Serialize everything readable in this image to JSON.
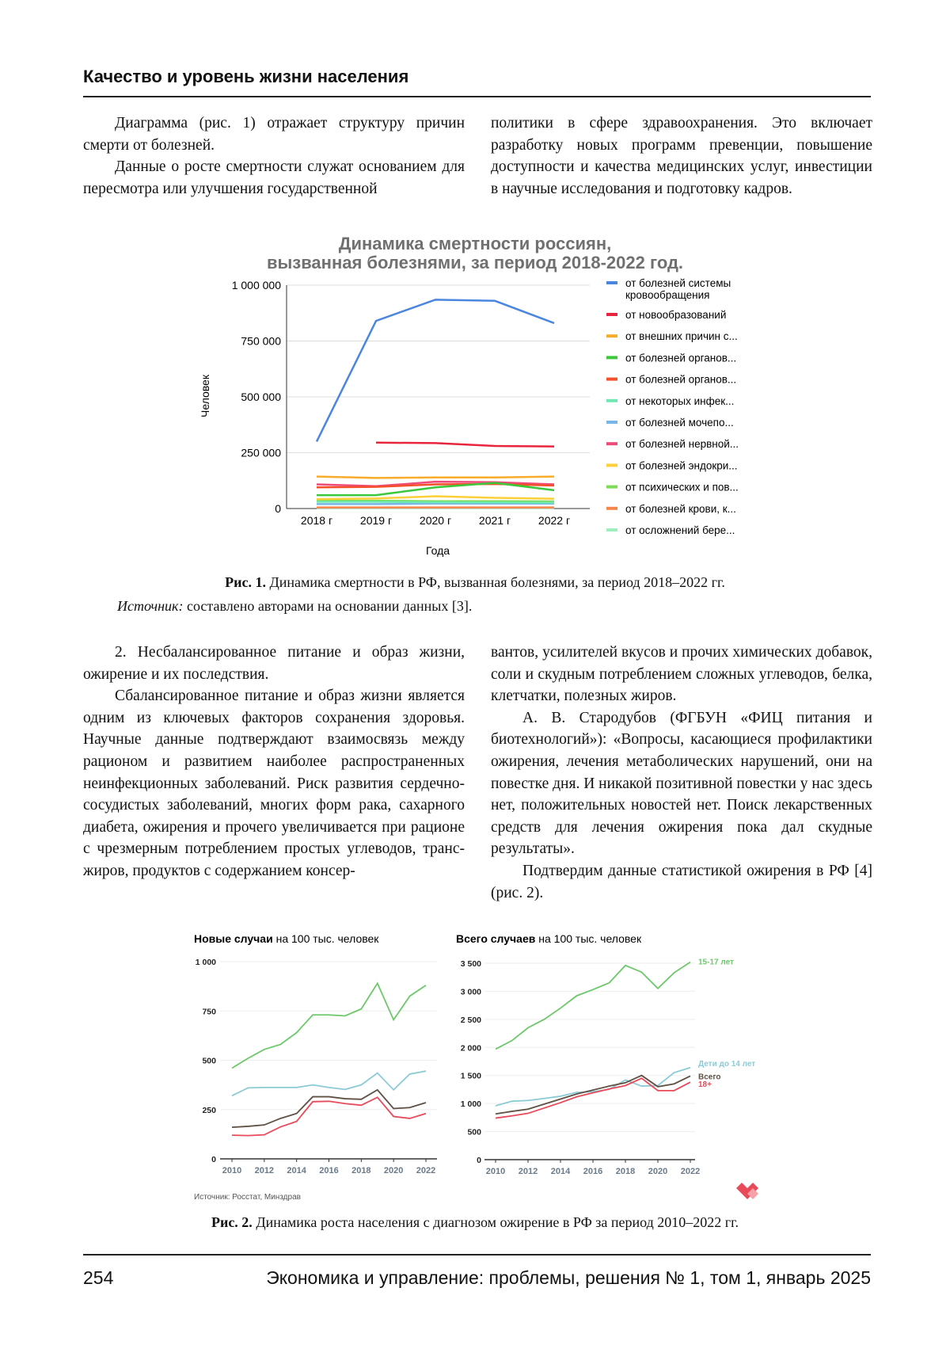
{
  "header": {
    "title": "Качество и уровень жизни населения"
  },
  "top_text": {
    "left": [
      "Диаграмма (рис. 1) отражает структуру причин смерти от болезней.",
      "Данные о росте смертности служат основанием для пересмотра или улучшения государственной"
    ],
    "right": "политики в сфере здравоохранения. Это включает разработку новых программ превенции, повышение доступности и качества медицинских услуг, инвестиции в научные исследования и подготовку кадров."
  },
  "figure1": {
    "caption_label": "Рис. 1.",
    "caption_text": " Динамика смертности в РФ, вызванная болезнями, за период 2018–2022 гг.",
    "source_label": "Источник:",
    "source_text": " составлено авторами на основании данных [3]."
  },
  "middle_text": {
    "left": [
      "2. Несбалансированное питание и образ жизни, ожирение и их последствия.",
      "Сбалансированное питание и образ жизни является одним из ключевых факторов сохранения здоровья. Научные данные подтверждают взаимосвязь между рационом и развитием наиболее распространенных неинфекционных заболеваний. Риск развития сердечно-сосудистых заболеваний, многих форм рака, сахарного диабета, ожирения и прочего увеличивается при рационе с чрезмерным потреблением простых углеводов, транс-жиров, продуктов с содержанием консер-"
    ],
    "right": [
      "вантов, усилителей вкусов и прочих химических добавок, соли и скудным потреблением сложных углеводов, белка, клетчатки, полезных жиров.",
      "А. В. Стародубов (ФГБУН «ФИЦ питания и биотехнологий»): «Вопросы, касающиеся профилактики ожирения, лечения метаболических нарушений, они на повестке дня. И никакой позитивной повестки у нас здесь нет, положительных новостей нет. Поиск лекарственных средств для лечения ожирения пока дал скудные результаты».",
      "Подтвердим данные статистикой ожирения в РФ [4] (рис. 2)."
    ]
  },
  "figure2": {
    "caption_label": "Рис. 2.",
    "caption_text": " Динамика роста населения с диагнозом ожирение в РФ за период 2010–2022 гг.",
    "source": "Источник: Росстат, Минздрав",
    "logo": "heart-logo"
  },
  "footer": {
    "page": "254",
    "journal": "Экономика и управление: проблемы, решения № 1, том 1, январь 2025"
  },
  "chart_data": [
    {
      "type": "line",
      "title": "Динамика смертности россиян, вызванная болезнями, за период 2018-2022 год.",
      "xlabel": "Года",
      "ylabel": "Человек",
      "categories": [
        "2018 г",
        "2019 г",
        "2020 г",
        "2021 г",
        "2022 г"
      ],
      "yticks": [
        0,
        250000,
        500000,
        750000,
        1000000
      ],
      "ytick_labels": [
        "0",
        "250 000",
        "500 000",
        "750 000",
        "1 000 000"
      ],
      "ylim": [
        0,
        1000000
      ],
      "grid": true,
      "legend": "right",
      "series": [
        {
          "name": "от болезней системы кровообращения",
          "color": "#4a86e0",
          "values": [
            300000,
            840000,
            935000,
            930000,
            830000
          ]
        },
        {
          "name": "от новообразований",
          "color": "#e8253d",
          "values": [
            null,
            295000,
            293000,
            280000,
            278000
          ]
        },
        {
          "name": "от внешних причин с...",
          "color": "#f9ac2a",
          "values": [
            143000,
            137000,
            139000,
            139000,
            143000
          ]
        },
        {
          "name": "от болезней органов...",
          "color": "#3cc83c",
          "values": [
            60000,
            60000,
            95000,
            115000,
            82000
          ]
        },
        {
          "name": "от болезней органов...",
          "color": "#f4502a",
          "values": [
            95000,
            97000,
            108000,
            110000,
            103000
          ]
        },
        {
          "name": "от некоторых инфек...",
          "color": "#6ee8b0",
          "values": [
            30000,
            30000,
            28000,
            27000,
            26000
          ]
        },
        {
          "name": "от болезней мочепо...",
          "color": "#7ab5e8",
          "values": [
            20000,
            20000,
            22000,
            22000,
            22000
          ]
        },
        {
          "name": "от болезней нервной...",
          "color": "#ee4a7a",
          "values": [
            108000,
            100000,
            120000,
            118000,
            108000
          ]
        },
        {
          "name": "от болезней эндокри...",
          "color": "#fdd03a",
          "values": [
            42000,
            45000,
            55000,
            48000,
            44000
          ]
        },
        {
          "name": "от психических и пов...",
          "color": "#7ddc55",
          "values": [
            35000,
            35000,
            33000,
            33000,
            32000
          ]
        },
        {
          "name": "от болезней крови, к...",
          "color": "#f7854a",
          "values": [
            5000,
            5000,
            5000,
            5000,
            5000
          ]
        },
        {
          "name": "от осложнений бере...",
          "color": "#a0eec0",
          "values": [
            3000,
            3000,
            3000,
            3000,
            3000
          ]
        }
      ]
    },
    {
      "type": "line",
      "title_bold": "Новые случаи",
      "title_rest": " на 100 тыс. человек",
      "x": [
        2010,
        2011,
        2012,
        2013,
        2014,
        2015,
        2016,
        2017,
        2018,
        2019,
        2020,
        2021,
        2022
      ],
      "xticks": [
        2010,
        2012,
        2014,
        2016,
        2018,
        2020,
        2022
      ],
      "yticks": [
        0,
        250,
        500,
        750,
        1000
      ],
      "ytick_labels": [
        "0",
        "250",
        "500",
        "750",
        "1 000"
      ],
      "ylim": [
        0,
        1000
      ],
      "grid": true,
      "series": [
        {
          "color": "#6cc86a",
          "values": [
            460,
            510,
            555,
            580,
            640,
            730,
            730,
            725,
            760,
            890,
            705,
            825,
            880
          ]
        },
        {
          "color": "#8ccbd6",
          "values": [
            320,
            360,
            362,
            362,
            362,
            375,
            362,
            352,
            375,
            435,
            350,
            430,
            445
          ]
        },
        {
          "color": "#5e5043",
          "values": [
            160,
            165,
            172,
            205,
            230,
            315,
            315,
            305,
            302,
            350,
            255,
            260,
            285
          ]
        },
        {
          "color": "#e84a5a",
          "values": [
            120,
            118,
            122,
            162,
            190,
            290,
            292,
            280,
            272,
            312,
            215,
            205,
            230
          ]
        }
      ]
    },
    {
      "type": "line",
      "title_bold": "Всего случаев",
      "title_rest": " на 100 тыс. человек",
      "x": [
        2010,
        2011,
        2012,
        2013,
        2014,
        2015,
        2016,
        2017,
        2018,
        2019,
        2020,
        2021,
        2022
      ],
      "xticks": [
        2010,
        2012,
        2014,
        2016,
        2018,
        2020,
        2022
      ],
      "yticks": [
        0,
        500,
        1000,
        1500,
        2000,
        2500,
        3000,
        3500
      ],
      "ytick_labels": [
        "0",
        "500",
        "1 000",
        "1 500",
        "2 000",
        "2 500",
        "3 000",
        "3 500"
      ],
      "ylim": [
        0,
        3500
      ],
      "grid": true,
      "series": [
        {
          "name": "15-17 лет",
          "color": "#6cc86a",
          "values": [
            1970,
            2120,
            2350,
            2500,
            2700,
            2920,
            3030,
            3150,
            3460,
            3340,
            3050,
            3330,
            3520
          ]
        },
        {
          "name": "Дети до 14 лет",
          "color": "#8ccbd6",
          "values": [
            960,
            1040,
            1055,
            1090,
            1130,
            1200,
            1210,
            1250,
            1420,
            1310,
            1320,
            1550,
            1640
          ]
        },
        {
          "name": "Всего",
          "color": "#5e5043",
          "values": [
            815,
            860,
            900,
            990,
            1080,
            1170,
            1240,
            1310,
            1370,
            1500,
            1300,
            1350,
            1490
          ]
        },
        {
          "name": "18+",
          "color": "#e84a5a",
          "values": [
            740,
            780,
            825,
            920,
            1015,
            1120,
            1190,
            1260,
            1320,
            1450,
            1230,
            1230,
            1380
          ]
        }
      ]
    }
  ]
}
